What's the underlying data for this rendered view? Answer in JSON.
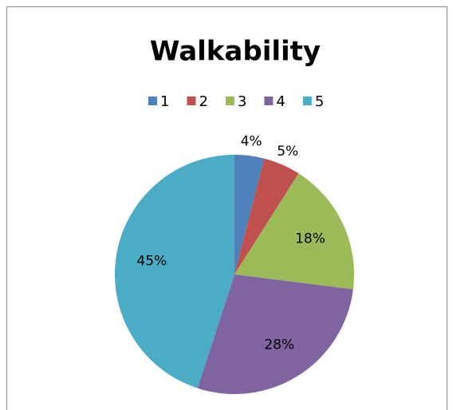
{
  "chart_data": {
    "type": "pie",
    "title": "Walkability",
    "categories": [
      "1",
      "2",
      "3",
      "4",
      "5"
    ],
    "values": [
      4,
      5,
      18,
      28,
      45
    ],
    "value_labels": [
      "4%",
      "5%",
      "18%",
      "28%",
      "45%"
    ],
    "colors": [
      "#4f81bd",
      "#c0504d",
      "#9bbb59",
      "#8064a2",
      "#4bacc6"
    ],
    "legend": "top"
  }
}
